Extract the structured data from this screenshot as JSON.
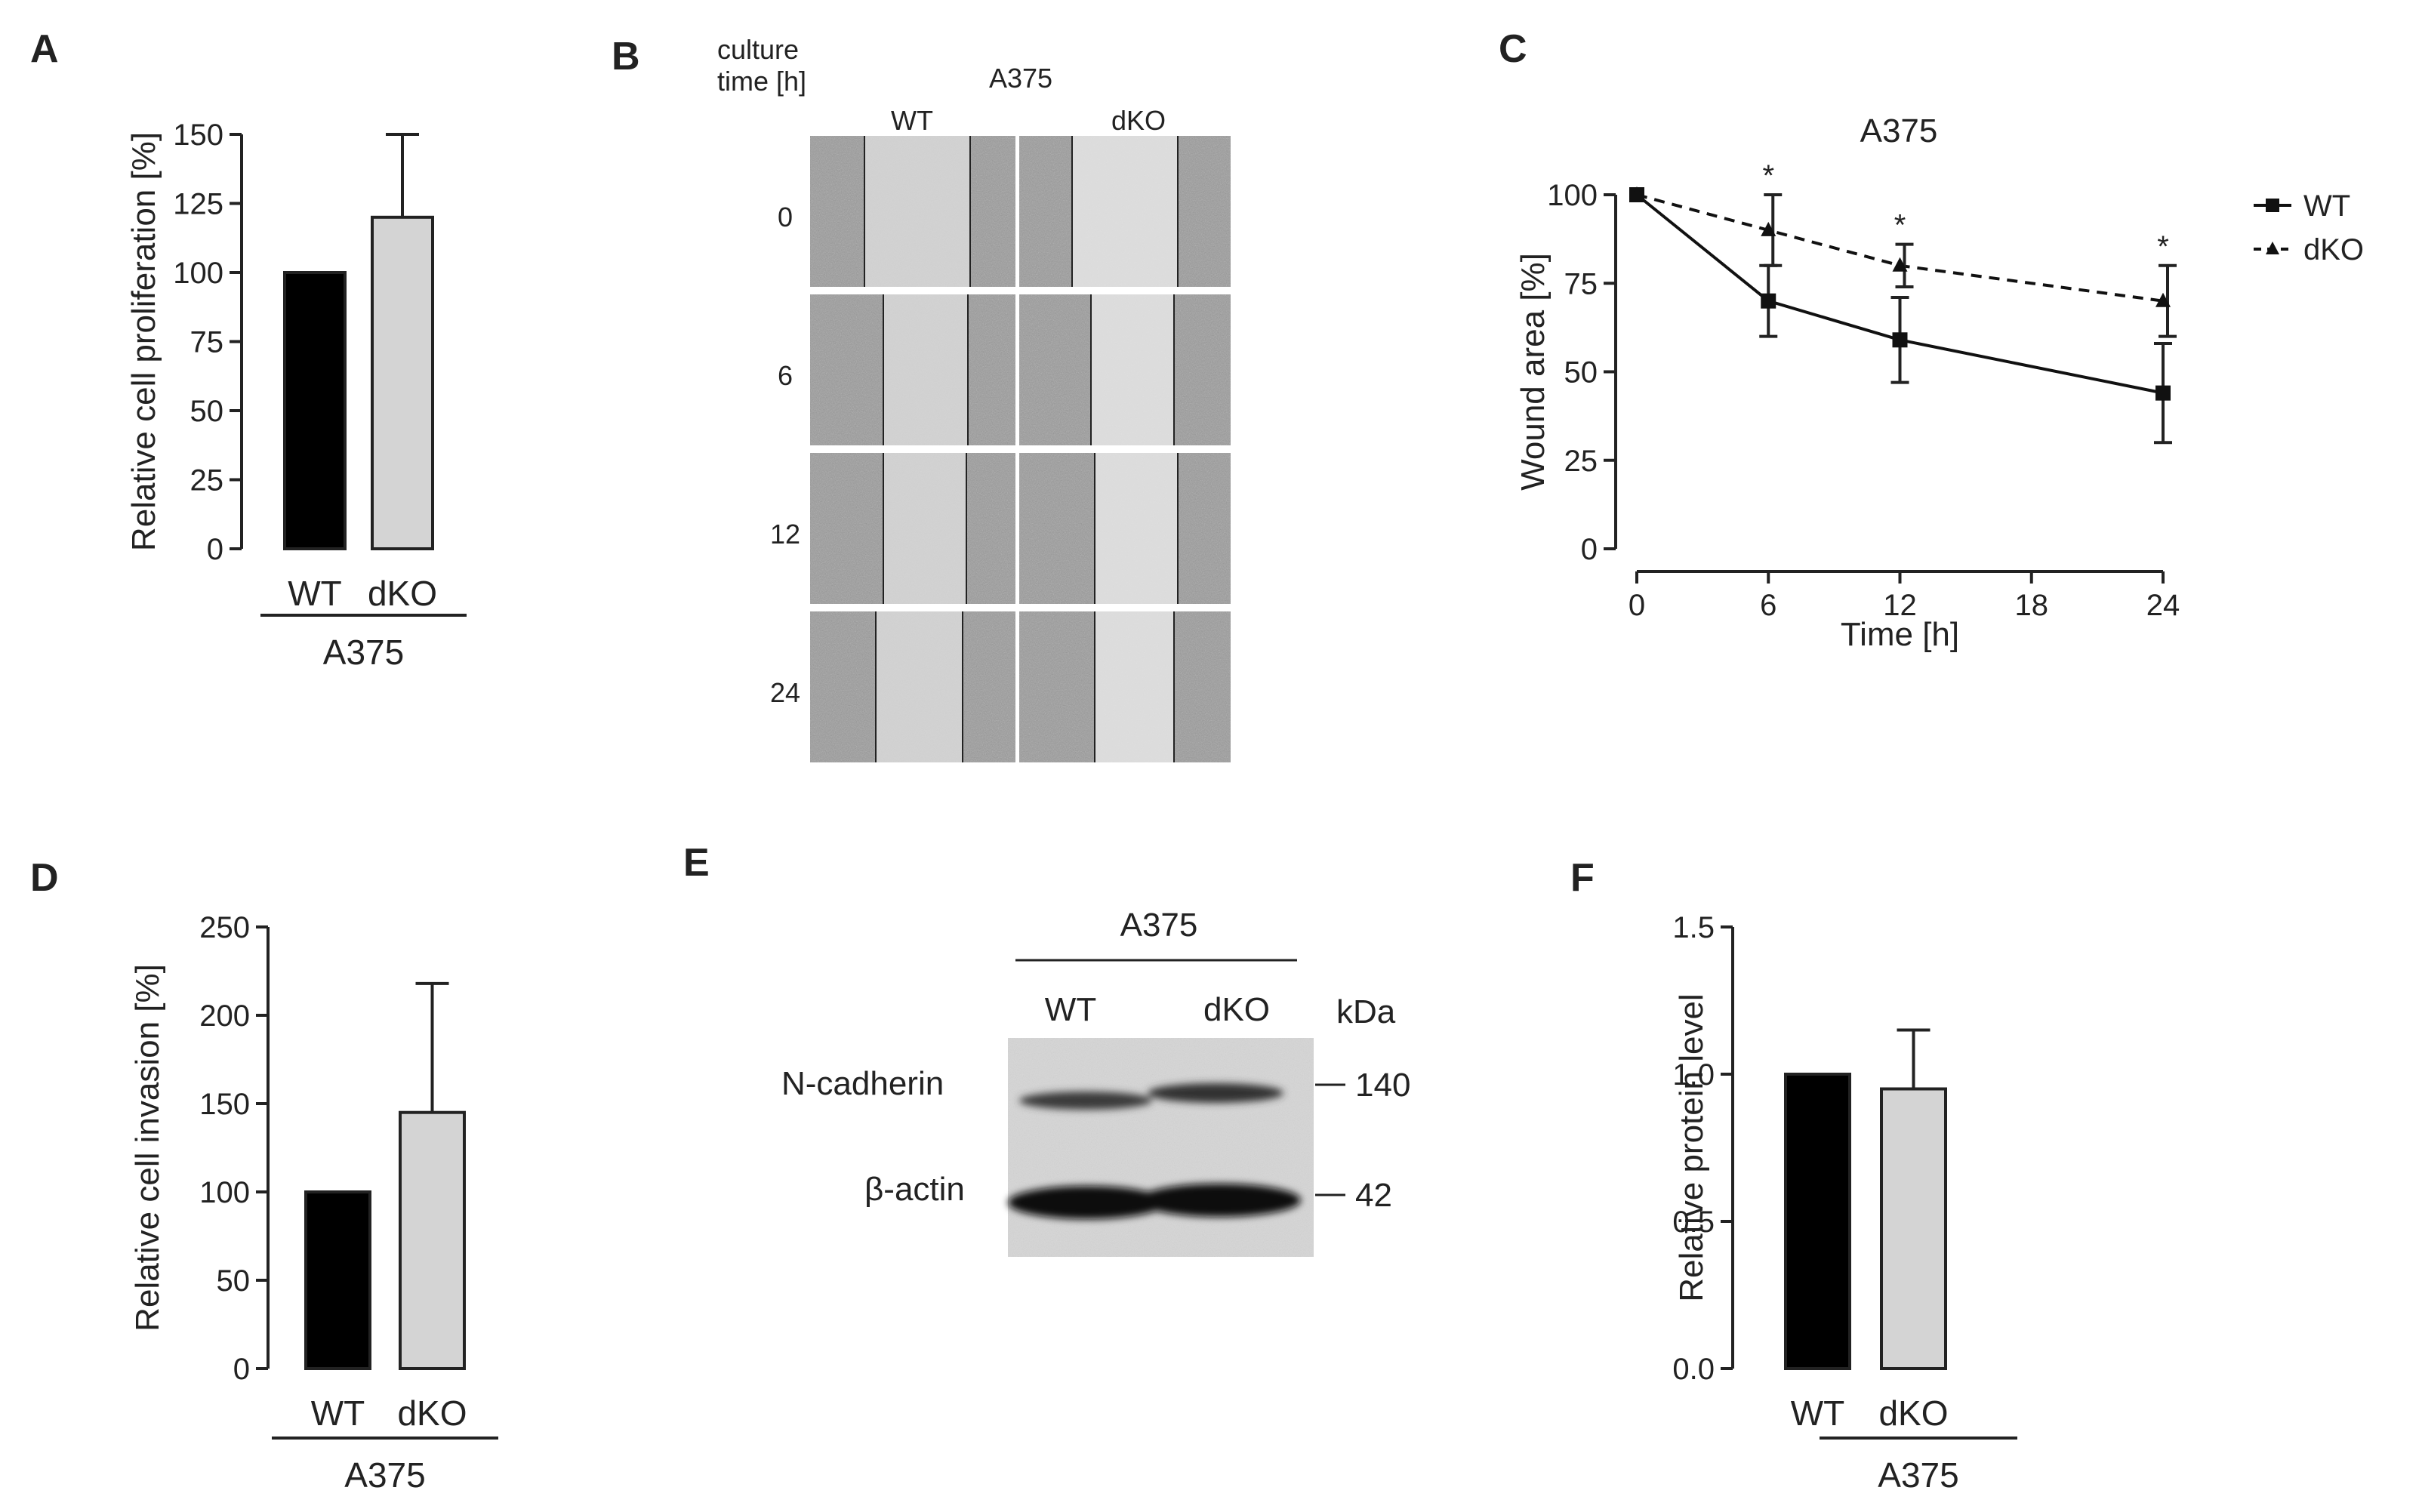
{
  "panels": {
    "A": {
      "letter": "A"
    },
    "B": {
      "letter": "B"
    },
    "C": {
      "letter": "C"
    },
    "D": {
      "letter": "D"
    },
    "E": {
      "letter": "E"
    },
    "F": {
      "letter": "F"
    }
  },
  "scratch": {
    "culture_label_1": "culture",
    "culture_label_2": "time [h]",
    "cell_line": "A375",
    "wt": "WT",
    "dko": "dKO",
    "times": [
      "0",
      "6",
      "12",
      "24"
    ]
  },
  "western": {
    "cell_line": "A375",
    "lanes": [
      "WT",
      "dKO"
    ],
    "kda_label": "kDa",
    "bands": [
      {
        "name": "N-cadherin",
        "kda": "140"
      },
      {
        "name": "β-actin",
        "kda": "42"
      }
    ]
  },
  "colors": {
    "wt_bar": "#000000",
    "dko_bar": "#d4d4d4",
    "axis": "#222222"
  },
  "chart_data": [
    {
      "id": "A",
      "type": "bar",
      "categories": [
        "WT",
        "dKO"
      ],
      "values": [
        100,
        120
      ],
      "errors": [
        0,
        30
      ],
      "ylabel": "Relative cell proliferation [%]",
      "ylim": [
        0,
        150
      ],
      "yticks": [
        "0",
        "25",
        "50",
        "75",
        "100",
        "125",
        "150"
      ],
      "group_label": "A375"
    },
    {
      "id": "C",
      "type": "line",
      "title": "A375",
      "x": [
        0,
        6,
        12,
        24
      ],
      "series": [
        {
          "name": "WT",
          "values": [
            100,
            70,
            59,
            44
          ],
          "errors": [
            0,
            10,
            12,
            14
          ]
        },
        {
          "name": "dKO",
          "values": [
            100,
            90,
            80,
            70
          ],
          "errors": [
            0,
            10,
            6,
            10
          ]
        }
      ],
      "significance": [
        "",
        "*",
        "*",
        "*"
      ],
      "xlabel": "Time [h]",
      "ylabel": "Wound area [%]",
      "xlim": [
        0,
        24
      ],
      "ylim": [
        0,
        100
      ],
      "xticks": [
        "0",
        "6",
        "12",
        "18",
        "24"
      ],
      "yticks": [
        "0",
        "25",
        "50",
        "75",
        "100"
      ],
      "legend": "top-right"
    },
    {
      "id": "D",
      "type": "bar",
      "categories": [
        "WT",
        "dKO"
      ],
      "values": [
        100,
        145
      ],
      "errors": [
        0,
        73
      ],
      "ylabel": "Relative cell invasion [%]",
      "ylim": [
        0,
        250
      ],
      "yticks": [
        "0",
        "50",
        "100",
        "150",
        "200",
        "250"
      ],
      "group_label": "A375"
    },
    {
      "id": "F",
      "type": "bar",
      "categories": [
        "WT",
        "dKO"
      ],
      "values": [
        1.0,
        0.95
      ],
      "errors": [
        0,
        0.2
      ],
      "ylabel": "Relative protein level",
      "ylim": [
        0,
        1.5
      ],
      "yticks": [
        "0.0",
        "0.5",
        "1.0",
        "1.5"
      ],
      "group_label": "A375"
    }
  ]
}
